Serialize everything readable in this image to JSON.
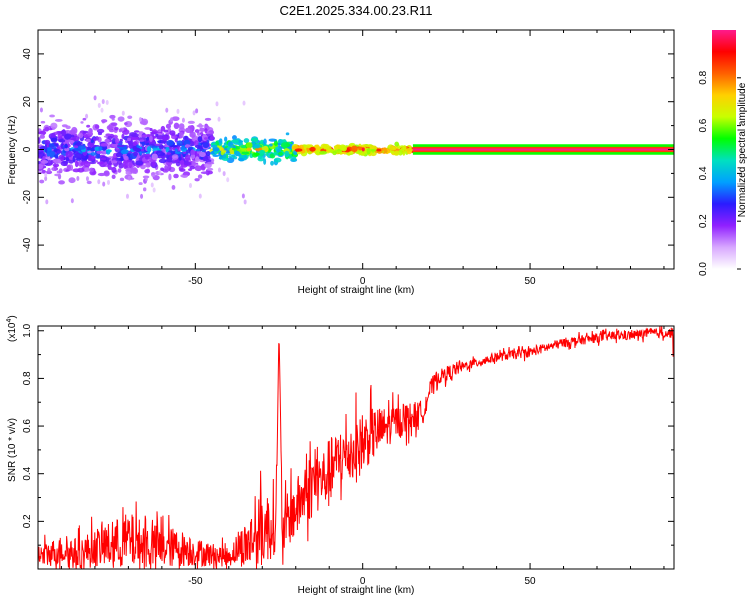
{
  "title": "C2E1.2025.334.00.23.R11",
  "colors": {
    "snr_line": "#ff0000",
    "spectral_ridge": "#e8185a",
    "colormap": [
      "#ffffff",
      "#d8a8ff",
      "#9020ff",
      "#2a1cff",
      "#00a0ff",
      "#00e0c0",
      "#00ff00",
      "#c8ff00",
      "#ffd000",
      "#ff6000",
      "#ff0000",
      "#ff1a8c"
    ]
  },
  "chart_data": [
    {
      "type": "heatmap",
      "title": "C2E1.2025.334.00.23.R11",
      "xlabel": "Height of straight line (km)",
      "ylabel": "Frequency (Hz)",
      "xlim": [
        -97,
        93
      ],
      "ylim": [
        -50,
        50
      ],
      "xticks": [
        -50,
        0,
        50
      ],
      "yticks": [
        -40,
        -20,
        0,
        20,
        40
      ],
      "colorbar": {
        "label": "Normalized spectral amplitude",
        "range": [
          0,
          1
        ],
        "ticks": [
          "0.0",
          "0.2",
          "0.4",
          "0.6",
          "0.8"
        ]
      },
      "regions": [
        {
          "x_range": [
            -97,
            -45
          ],
          "freq_spread_hz": 10,
          "amplitude": "0.1-0.5 scattered"
        },
        {
          "x_range": [
            -45,
            -20
          ],
          "freq_spread_hz": 4,
          "amplitude": "0.4-0.9"
        },
        {
          "x_range": [
            -20,
            15
          ],
          "freq_spread_hz": 1.5,
          "amplitude": "0.8-1.0"
        },
        {
          "x_range": [
            15,
            93
          ],
          "freq_spread_hz": 0.5,
          "amplitude": "1.0 constant at 0 Hz"
        }
      ]
    },
    {
      "type": "line",
      "xlabel": "Height of straight line (km)",
      "ylabel": "SNR (10 * v/v)",
      "y_multiplier": "(x10",
      "y_multiplier_exp": "4",
      "xlim": [
        -97,
        93
      ],
      "ylim": [
        0,
        1.02
      ],
      "xticks": [
        -50,
        0,
        50
      ],
      "yticks": [
        0.2,
        0.4,
        0.6,
        0.8,
        1.0
      ],
      "series": [
        {
          "name": "SNR",
          "x": [
            -97,
            -90,
            -85,
            -80,
            -75,
            -70,
            -65,
            -60,
            -55,
            -50,
            -45,
            -40,
            -38,
            -35,
            -32,
            -30,
            -28,
            -26,
            -25,
            -24,
            -22,
            -20,
            -18,
            -15,
            -12,
            -10,
            -8,
            -5,
            -2,
            0,
            2,
            5,
            8,
            10,
            12,
            15,
            18,
            20,
            22,
            25,
            28,
            30,
            35,
            40,
            45,
            50,
            55,
            60,
            65,
            70,
            75,
            80,
            85,
            90,
            93
          ],
          "values": [
            0.05,
            0.08,
            0.06,
            0.09,
            0.1,
            0.12,
            0.1,
            0.09,
            0.09,
            0.07,
            0.06,
            0.05,
            0.08,
            0.1,
            0.14,
            0.16,
            0.18,
            0.17,
            0.99,
            0.15,
            0.22,
            0.25,
            0.3,
            0.36,
            0.38,
            0.4,
            0.45,
            0.48,
            0.5,
            0.52,
            0.56,
            0.58,
            0.6,
            0.62,
            0.63,
            0.64,
            0.66,
            0.75,
            0.8,
            0.82,
            0.84,
            0.85,
            0.87,
            0.89,
            0.9,
            0.91,
            0.93,
            0.95,
            0.96,
            0.97,
            0.98,
            0.98,
            0.99,
            0.99,
            1.0
          ],
          "noise_amplitude": [
            0.05,
            0.06,
            0.07,
            0.08,
            0.1,
            0.12,
            0.1,
            0.09,
            0.08,
            0.06,
            0.05,
            0.04,
            0.06,
            0.1,
            0.14,
            0.16,
            0.15,
            0.1,
            0.02,
            0.1,
            0.12,
            0.13,
            0.12,
            0.15,
            0.12,
            0.15,
            0.12,
            0.12,
            0.14,
            0.12,
            0.12,
            0.1,
            0.08,
            0.07,
            0.07,
            0.06,
            0.05,
            0.04,
            0.03,
            0.03,
            0.03,
            0.02,
            0.02,
            0.02,
            0.02,
            0.02,
            0.02,
            0.02,
            0.02,
            0.02,
            0.02,
            0.02,
            0.02,
            0.02,
            0.02
          ]
        }
      ]
    }
  ]
}
